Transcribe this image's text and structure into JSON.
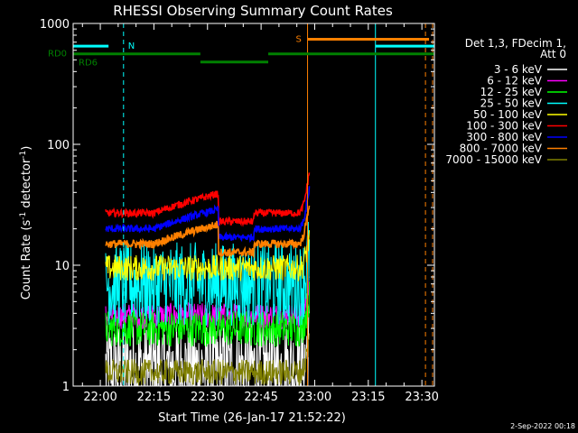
{
  "chart_data": {
    "type": "line",
    "title": "RHESSI Observing Summary Count Rates",
    "xlabel": "Start Time (26-Jan-17 21:52:22)",
    "ylabel_main": "Count Rate (s",
    "ylabel_sup1": "-1",
    "ylabel_mid": " detector",
    "ylabel_sup2": "-1",
    "ylabel_end": ")",
    "y_scale": "log",
    "ylim": [
      1,
      1000
    ],
    "xlim_minutes": [
      -7.6,
      93.5
    ],
    "x_ticks": [
      {
        "label": "22:00",
        "min": 0
      },
      {
        "label": "22:15",
        "min": 15
      },
      {
        "label": "22:30",
        "min": 30
      },
      {
        "label": "22:45",
        "min": 45
      },
      {
        "label": "23:00",
        "min": 60
      },
      {
        "label": "23:15",
        "min": 75
      },
      {
        "label": "23:30",
        "min": 90
      }
    ],
    "y_ticks": [
      {
        "label": "1",
        "value": 1
      },
      {
        "label": "10",
        "value": 10
      },
      {
        "label": "100",
        "value": 100
      },
      {
        "label": "1000",
        "value": 1000
      }
    ],
    "legend": {
      "header": [
        "Det 1,3, FDecim 1,",
        "Att 0"
      ],
      "position": "right"
    },
    "data_window_minutes": [
      1.5,
      58.5
    ],
    "series": [
      {
        "name": "3 - 6 keV",
        "color": "#ffffff",
        "base": 1.4,
        "noise": 0.9,
        "profile": "flat"
      },
      {
        "name": "6 - 12 keV",
        "color": "#ff00ff",
        "base": 3.8,
        "noise": 0.25,
        "profile": "flat"
      },
      {
        "name": "12 - 25 keV",
        "color": "#00ff00",
        "base": 3.0,
        "noise": 0.35,
        "profile": "flat"
      },
      {
        "name": "25 - 50 keV",
        "color": "#00ffff",
        "base": 7.0,
        "noise": 0.8,
        "profile": "flat"
      },
      {
        "name": "50 - 100 keV",
        "color": "#ffff00",
        "base": 9.5,
        "noise": 0.25,
        "profile": "flat"
      },
      {
        "name": "100 - 300 keV",
        "color": "#ff0000",
        "base": 27,
        "noise": 0.07,
        "profile": "rise"
      },
      {
        "name": "300 - 800 keV",
        "color": "#0000ff",
        "base": 20,
        "noise": 0.07,
        "profile": "rise"
      },
      {
        "name": "800 - 7000 keV",
        "color": "#ff8000",
        "base": 15,
        "noise": 0.08,
        "profile": "rise"
      },
      {
        "name": "7000 - 15000 keV",
        "color": "#808000",
        "base": 1.3,
        "noise": 0.25,
        "profile": "flat"
      }
    ],
    "flags": [
      {
        "label": "N",
        "color": "#00ffff",
        "segments": [
          [
            -7.6,
            2.3
          ],
          [
            77,
            93.5
          ]
        ],
        "level_value": 650,
        "lines_solid": [
          77
        ],
        "lines_dashed": [
          6.5
        ]
      },
      {
        "label": "S",
        "color": "#ff8000",
        "segments": [
          [
            58,
            92
          ]
        ],
        "level_value": 740,
        "lines_solid": [
          58
        ],
        "lines_dashed": [
          91,
          93
        ]
      },
      {
        "label": "RD0",
        "color": "#008000",
        "segments": [
          [
            -7.6,
            28
          ],
          [
            47,
            93.5
          ]
        ],
        "level_value": 560
      },
      {
        "label": "RD6",
        "color": "#008000",
        "segments": [
          [
            28,
            47
          ]
        ],
        "level_value": 480
      }
    ]
  },
  "footer": {
    "date": "2-Sep-2022 00:18"
  }
}
